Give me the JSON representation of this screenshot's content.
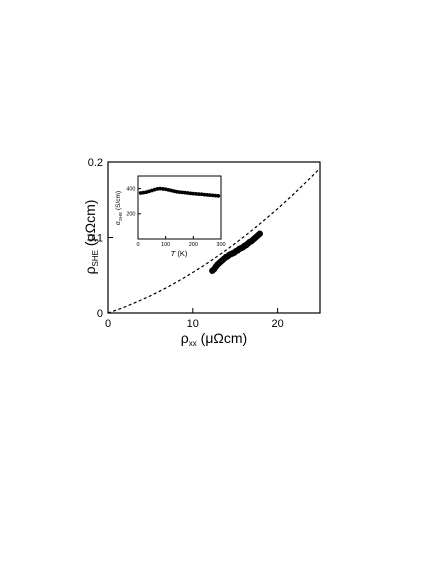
{
  "chart_data": [
    {
      "type": "scatter",
      "title": "",
      "xlabel": {
        "main": "ρ",
        "sub": "xx",
        "unit": " (μΩcm)"
      },
      "ylabel": {
        "main": "ρ",
        "sub": "SHE",
        "unit": " (μΩcm)"
      },
      "xlim": [
        0,
        25
      ],
      "ylim": [
        0,
        0.2
      ],
      "xticks": [
        0,
        10,
        20
      ],
      "xtick_labels": [
        "0",
        "10",
        "20"
      ],
      "yticks": [
        0,
        0.1,
        0.2
      ],
      "ytick_labels": [
        "0",
        "0.1",
        "0.2"
      ],
      "grid": false,
      "series": [
        {
          "kind": "markers",
          "color": "#000000",
          "x": [
            12.3,
            12.5,
            12.7,
            12.9,
            13.1,
            13.3,
            13.5,
            13.7,
            13.9,
            14.1,
            14.3,
            14.5,
            14.7,
            14.9,
            15.1,
            15.3,
            15.5,
            15.7,
            15.9,
            16.1,
            16.3,
            16.5,
            16.7,
            16.9,
            17.1,
            17.3,
            17.5,
            17.7,
            17.9
          ],
          "y": [
            0.056,
            0.058,
            0.061,
            0.064,
            0.066,
            0.068,
            0.07,
            0.072,
            0.074,
            0.075,
            0.077,
            0.078,
            0.079,
            0.08,
            0.082,
            0.083,
            0.085,
            0.086,
            0.087,
            0.089,
            0.09,
            0.092,
            0.094,
            0.095,
            0.097,
            0.099,
            0.101,
            0.103,
            0.105
          ]
        },
        {
          "kind": "dashed-fit",
          "color": "#000000",
          "x": [
            0,
            1,
            2,
            3,
            4,
            5,
            6,
            7,
            8,
            9,
            10,
            11,
            12,
            13,
            14,
            15,
            16,
            17,
            18,
            19,
            20,
            21,
            22,
            23,
            24,
            25
          ],
          "y": [
            0,
            0.0038,
            0.0081,
            0.0127,
            0.0176,
            0.0228,
            0.0283,
            0.0342,
            0.0404,
            0.0469,
            0.0537,
            0.0608,
            0.0682,
            0.0759,
            0.0839,
            0.0922,
            0.1008,
            0.1097,
            0.1189,
            0.1284,
            0.1382,
            0.1483,
            0.1587,
            0.1694,
            0.1804,
            0.1917
          ]
        }
      ]
    },
    {
      "type": "scatter",
      "inset": true,
      "title": "",
      "xlabel": {
        "main": "T",
        "unit": " (K)"
      },
      "ylabel": {
        "main": "σ",
        "sub": "SHE",
        "unit": " (S/cm)"
      },
      "xlim": [
        0,
        300
      ],
      "ylim": [
        0,
        500
      ],
      "xticks": [
        0,
        100,
        200,
        300
      ],
      "xtick_labels": [
        "0",
        "100",
        "200",
        "300"
      ],
      "yticks": [
        200,
        400
      ],
      "ytick_labels": [
        "200",
        "400"
      ],
      "grid": false,
      "series": [
        {
          "kind": "markers",
          "color": "#000000",
          "x": [
            10,
            20,
            30,
            40,
            50,
            60,
            70,
            80,
            90,
            100,
            110,
            120,
            130,
            140,
            150,
            160,
            170,
            180,
            190,
            200,
            210,
            220,
            230,
            240,
            250,
            260,
            270,
            280,
            290
          ],
          "y": [
            365,
            368,
            372,
            378,
            385,
            392,
            398,
            400,
            398,
            395,
            390,
            385,
            380,
            375,
            372,
            370,
            368,
            365,
            362,
            360,
            358,
            356,
            355,
            352,
            350,
            348,
            346,
            344,
            342
          ]
        }
      ]
    }
  ]
}
